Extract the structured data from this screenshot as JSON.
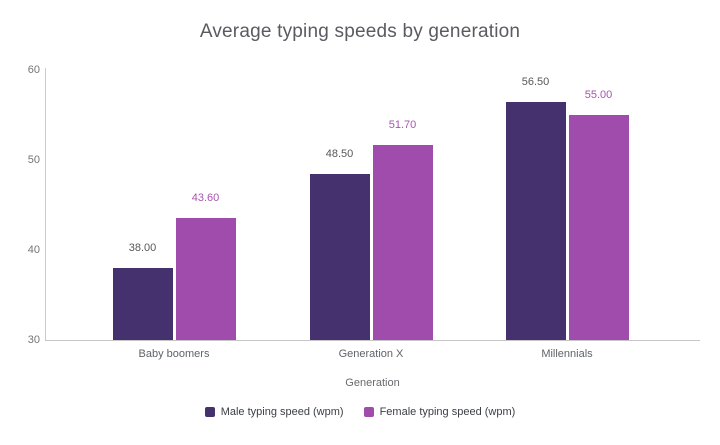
{
  "chart": {
    "title": "Average typing speeds by generation"
  },
  "chart_data": {
    "type": "bar",
    "title": "Average typing speeds by generation",
    "categories": [
      "Baby boomers",
      "Generation X",
      "Millennials"
    ],
    "series": [
      {
        "name": "Male typing speed (wpm)",
        "color": "#44316e",
        "label_color": "#58585b",
        "values": [
          38.0,
          48.5,
          56.5
        ],
        "value_labels": [
          "38.00",
          "48.50",
          "56.50"
        ]
      },
      {
        "name": "Female typing speed (wpm)",
        "color": "#a04cad",
        "label_color": "#aa53b2",
        "values": [
          43.6,
          51.7,
          55.0
        ],
        "value_labels": [
          "43.60",
          "51.70",
          "55.00"
        ]
      }
    ],
    "xlabel": "Generation",
    "ylabel": "",
    "ylim": [
      30,
      60
    ],
    "yticks": [
      30,
      40,
      50,
      60
    ],
    "grid": false,
    "legend_position": "bottom"
  },
  "colors": {
    "axis": "#cccccc",
    "tick_label": "#757575",
    "category_label": "#5f6368",
    "title": "#5a5b60",
    "legend_text": "#3b3e45",
    "background": "#ffffff"
  }
}
